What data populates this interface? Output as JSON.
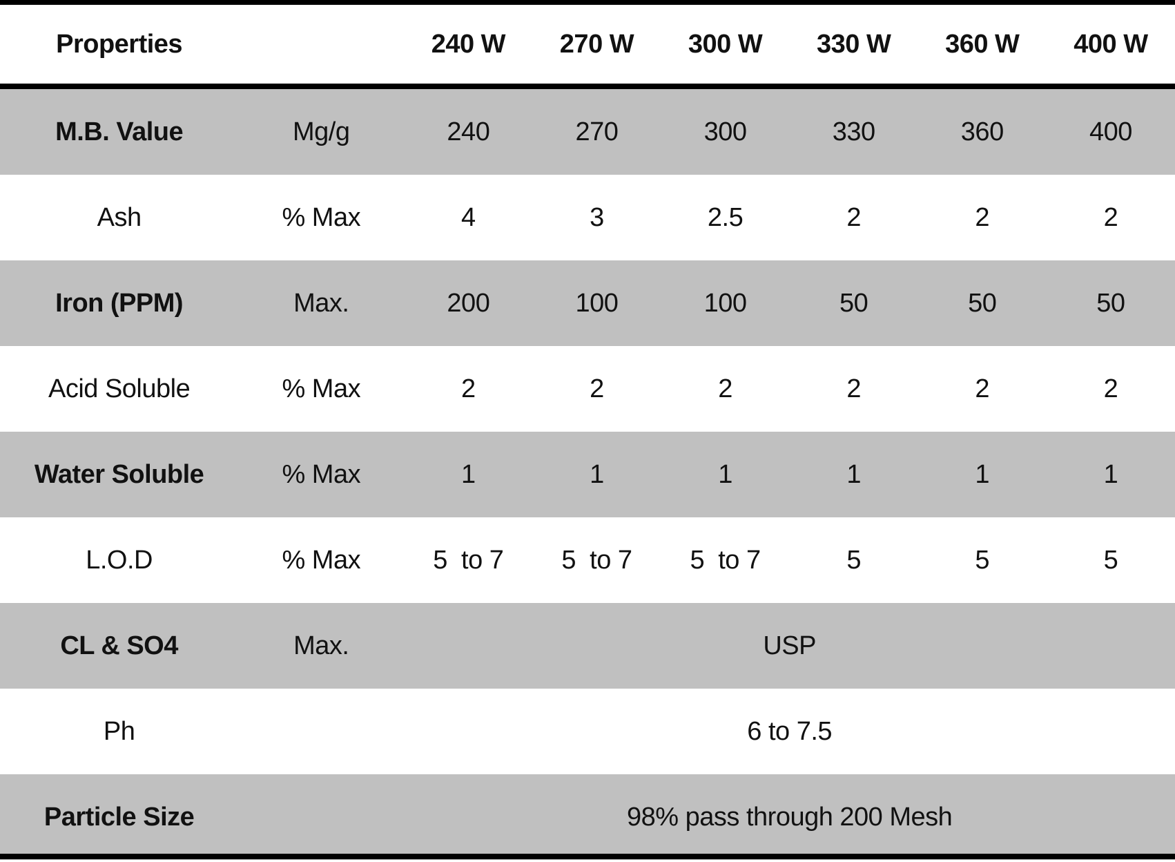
{
  "table": {
    "header": {
      "properties": "Properties",
      "unit": "",
      "grades": [
        "240 W",
        "270 W",
        "300 W",
        "330 W",
        "360 W",
        "400 W"
      ]
    },
    "rows": [
      {
        "property": "M.B. Value",
        "unit": "Mg/g",
        "values": [
          "240",
          "270",
          "300",
          "330",
          "360",
          "400"
        ],
        "bold": true,
        "shaded": true
      },
      {
        "property": "Ash",
        "unit": "% Max",
        "values": [
          "4",
          "3",
          "2.5",
          "2",
          "2",
          "2"
        ],
        "bold": false,
        "shaded": false
      },
      {
        "property": "Iron (PPM)",
        "unit": "Max.",
        "values": [
          "200",
          "100",
          "100",
          "50",
          "50",
          "50"
        ],
        "bold": true,
        "shaded": true
      },
      {
        "property": "Acid Soluble",
        "unit": "% Max",
        "values": [
          "2",
          "2",
          "2",
          "2",
          "2",
          "2"
        ],
        "bold": false,
        "shaded": false
      },
      {
        "property": "Water Soluble",
        "unit": "% Max",
        "values": [
          "1",
          "1",
          "1",
          "1",
          "1",
          "1"
        ],
        "bold": true,
        "shaded": true
      },
      {
        "property": "L.O.D",
        "unit": "% Max",
        "values": [
          "5  to 7",
          "5  to 7",
          "5  to 7",
          "5",
          "5",
          "5"
        ],
        "bold": false,
        "shaded": false
      },
      {
        "property": "CL & SO4",
        "unit": "Max.",
        "merged_value": "USP",
        "bold": true,
        "shaded": true
      },
      {
        "property": "Ph",
        "unit": "",
        "merged_value": "6 to 7.5",
        "bold": false,
        "shaded": false
      },
      {
        "property": "Particle Size",
        "unit": "",
        "merged_value": "98% pass through 200 Mesh",
        "bold": true,
        "shaded": true
      }
    ]
  },
  "colors": {
    "shaded_row": "#c0c0c0",
    "plain_row": "#ffffff",
    "rule": "#000000"
  }
}
